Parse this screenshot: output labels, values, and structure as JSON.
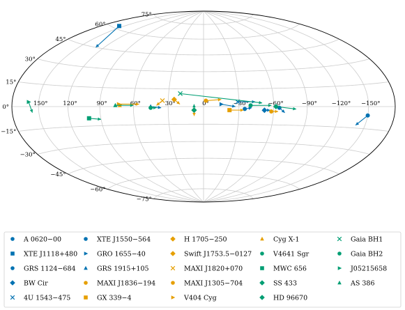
{
  "chart_data": {
    "type": "scatter",
    "projection": "hammer-aitoff (galactic)",
    "title": "",
    "xlabel": "",
    "ylabel": "",
    "grid": true,
    "legend_position": "bottom",
    "lon_ticks": [
      "150°",
      "120°",
      "90°",
      "60°",
      "30°",
      "0°",
      "−30°",
      "−60°",
      "−90°",
      "−120°",
      "−150°"
    ],
    "lon_tick_values": [
      150,
      120,
      90,
      60,
      30,
      0,
      -30,
      -60,
      -90,
      -120,
      -150
    ],
    "lat_ticks": [
      "75°",
      "60°",
      "45°",
      "30°",
      "15°",
      "0°",
      "−15°",
      "−30°",
      "−45°",
      "−60°",
      "−75°"
    ],
    "lat_tick_values": [
      75,
      60,
      45,
      30,
      15,
      0,
      -15,
      -30,
      -45,
      -60,
      -75
    ],
    "colors": {
      "blue": "#0072b2",
      "orange": "#e69f00",
      "green": "#009e73"
    },
    "series": [
      {
        "name": "A 0620−00",
        "color": "#0072b2",
        "marker": "circle",
        "l": -150,
        "b": -6,
        "end": [
          -140,
          -13
        ]
      },
      {
        "name": "XTE J1118+480",
        "color": "#0072b2",
        "marker": "square",
        "l": 157,
        "b": 62,
        "end": [
          130,
          45
        ]
      },
      {
        "name": "GRS 1124−684",
        "color": "#0072b2",
        "marker": "circle",
        "l": -65,
        "b": -1,
        "end": [
          -70,
          -5
        ]
      },
      {
        "name": "BW Cir",
        "color": "#0072b2",
        "marker": "diamond",
        "l": -52,
        "b": -3,
        "end": [
          -57,
          -3
        ]
      },
      {
        "name": "4U 1543−475",
        "color": "#0072b2",
        "marker": "x",
        "l": -29,
        "b": 4,
        "end": [
          -44,
          4
        ]
      },
      {
        "name": "XTE J1550−564",
        "color": "#0072b2",
        "marker": "circle",
        "l": -35,
        "b": -2,
        "end": [
          -41,
          -1
        ]
      },
      {
        "name": "GRO 1655−40",
        "color": "#0072b2",
        "marker": "triangle-right",
        "l": -15,
        "b": 2,
        "end": [
          -27,
          0
        ]
      },
      {
        "name": "GRS 1915+105",
        "color": "#0072b2",
        "marker": "triangle-up",
        "l": 45,
        "b": 0,
        "end": [
          36,
          -1
        ]
      },
      {
        "name": "H 1705−250",
        "color": "#e69f00",
        "marker": "diamond",
        "l": 25,
        "b": 6,
        "end": [
          20,
          2
        ]
      },
      {
        "name": "Swift J1753.5−0127",
        "color": "#e69f00",
        "marker": "diamond",
        "l": 8,
        "b": -3,
        "end": [
          8,
          -8
        ]
      },
      {
        "name": "MAXI J1820+070",
        "color": "#e69f00",
        "marker": "x",
        "l": 35,
        "b": 5,
        "end": [
          40,
          1
        ]
      },
      {
        "name": "MAXI J1305−704",
        "color": "#e69f00",
        "marker": "circle",
        "l": -58,
        "b": -4,
        "end": [
          -64,
          -4
        ]
      },
      {
        "name": "Cyg X-1",
        "color": "#e69f00",
        "marker": "triangle-up",
        "l": 72,
        "b": 1,
        "end": [
          70,
          2
        ]
      },
      {
        "name": "V4641 Sgr",
        "color": "#009e73",
        "marker": "circle",
        "l": 45,
        "b": -1,
        "end": [
          40,
          -1
        ]
      },
      {
        "name": "MWC 656",
        "color": "#009e73",
        "marker": "square",
        "l": 101,
        "b": -9,
        "end": [
          90,
          -10
        ]
      },
      {
        "name": "SS 433",
        "color": "#009e73",
        "marker": "diamond",
        "l": 8,
        "b": -3,
        "end": [
          8,
          2
        ]
      },
      {
        "name": "HD 96670",
        "color": "#009e73",
        "marker": "diamond",
        "l": -62,
        "b": 0,
        "end": [
          -80,
          -2
        ]
      },
      {
        "name": "MAXI J1836−194",
        "color": "#e69f00",
        "marker": "circle",
        "l": -2,
        "b": 5,
        "end": [
          -15,
          6
        ]
      },
      {
        "name": "GX 339−4",
        "color": "#e69f00",
        "marker": "square",
        "l": -22,
        "b": -3,
        "end": [
          -34,
          -3
        ]
      },
      {
        "name": "V404 Cyg",
        "color": "#e69f00",
        "marker": "triangle-right",
        "l": 73,
        "b": 2,
        "end": [
          55,
          2
        ]
      },
      {
        "name": "Gaia BH1",
        "color": "#009e73",
        "marker": "x",
        "l": 20,
        "b": 11,
        "end": [
          -50,
          3
        ]
      },
      {
        "name": "Gaia BH2",
        "color": "#009e73",
        "marker": "circle",
        "l": -40,
        "b": 1,
        "end": [
          -58,
          1
        ]
      },
      {
        "name": "J05215658",
        "color": "#009e73",
        "marker": "triangle-right",
        "l": 161,
        "b": 3,
        "end": [
          157,
          -4
        ]
      },
      {
        "name": "AS 386",
        "color": "#009e73",
        "marker": "triangle-up",
        "l": 76,
        "b": 1,
        "end": [
          60,
          1
        ]
      }
    ],
    "legend_columns": [
      [
        "A 0620−00",
        "XTE J1118+480",
        "GRS 1124−684",
        "BW Cir",
        "4U 1543−475"
      ],
      [
        "XTE J1550−564",
        "GRO 1655−40",
        "GRS 1915+105",
        "MAXI J1836−194",
        "GX 339−4"
      ],
      [
        "H 1705−250",
        "Swift J1753.5−0127",
        "MAXI J1820+070",
        "MAXI J1305−704",
        "V404 Cyg"
      ],
      [
        "Cyg X-1",
        "V4641 Sgr",
        "MWC 656",
        "SS 433",
        "HD 96670"
      ],
      [
        "Gaia BH1",
        "Gaia BH2",
        "J05215658",
        "AS 386"
      ]
    ]
  }
}
